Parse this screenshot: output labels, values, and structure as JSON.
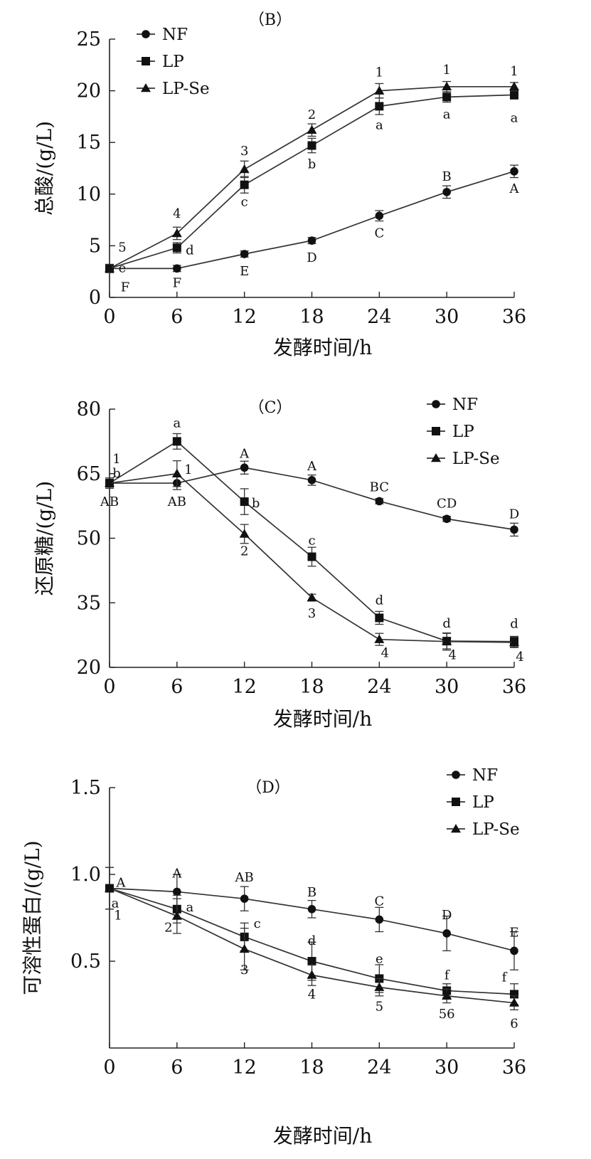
{
  "chart_data": [
    {
      "type": "line",
      "panel_label": "（B）",
      "xlabel": "发酵时间/h",
      "ylabel": "总酸/(g/L)",
      "x": [
        0,
        6,
        12,
        18,
        24,
        30,
        36
      ],
      "x_ticks": [
        "0",
        "6",
        "12",
        "18",
        "24",
        "30",
        "36"
      ],
      "y_ticks": [
        "0",
        "5",
        "10",
        "15",
        "20",
        "25"
      ],
      "xlim": [
        0,
        36
      ],
      "ylim": [
        0,
        25
      ],
      "grid": false,
      "legend_position": "top-left",
      "series": [
        {
          "name": "NF",
          "marker": "circle",
          "values": [
            2.8,
            2.8,
            4.2,
            5.5,
            7.9,
            10.2,
            12.2
          ],
          "error": [
            0.3,
            0.3,
            0.3,
            0.3,
            0.5,
            0.6,
            0.6
          ]
        },
        {
          "name": "LP",
          "marker": "square",
          "values": [
            2.8,
            4.8,
            10.9,
            14.7,
            18.5,
            19.4,
            19.6
          ],
          "error": [
            0.4,
            0.5,
            0.8,
            0.7,
            0.8,
            0.5,
            0.4
          ]
        },
        {
          "name": "LP-Se",
          "marker": "triangle",
          "values": [
            2.8,
            6.2,
            12.4,
            16.2,
            20.0,
            20.4,
            20.4
          ],
          "error": [
            0.4,
            0.6,
            0.8,
            0.6,
            0.7,
            0.5,
            0.4
          ]
        }
      ],
      "annotations": {
        "NF": [
          "F",
          "F",
          "E",
          "D",
          "C",
          "B",
          "A"
        ],
        "LP": [
          "e",
          "d",
          "c",
          "b",
          "a",
          "a",
          "a"
        ],
        "LP-Se": [
          "5",
          "4",
          "3",
          "2",
          "1",
          "1",
          "1"
        ]
      }
    },
    {
      "type": "line",
      "panel_label": "（C）",
      "xlabel": "发酵时间/h",
      "ylabel": "还原糖/(g/L)",
      "x": [
        0,
        6,
        12,
        18,
        24,
        30,
        36
      ],
      "x_ticks": [
        "0",
        "6",
        "12",
        "18",
        "24",
        "30",
        "36"
      ],
      "y_ticks": [
        "20",
        "35",
        "50",
        "65",
        "80"
      ],
      "xlim": [
        0,
        36
      ],
      "ylim": [
        20,
        80
      ],
      "grid": false,
      "legend_position": "top-right",
      "series": [
        {
          "name": "NF",
          "marker": "circle",
          "values": [
            62.8,
            62.8,
            66.4,
            63.5,
            58.6,
            54.5,
            52.0
          ],
          "error": [
            1.2,
            1.5,
            1.5,
            1.2,
            0.6,
            0.6,
            1.5
          ]
        },
        {
          "name": "LP",
          "marker": "square",
          "values": [
            62.8,
            72.5,
            58.5,
            45.7,
            31.5,
            26.1,
            26.0
          ],
          "error": [
            1.2,
            1.8,
            3.0,
            2.2,
            1.5,
            1.8,
            1.2
          ]
        },
        {
          "name": "LP-Se",
          "marker": "triangle",
          "values": [
            62.8,
            65.0,
            51.0,
            36.2,
            26.5,
            26.0,
            25.8
          ],
          "error": [
            1.2,
            3.0,
            2.2,
            0.8,
            1.4,
            2.0,
            1.2
          ]
        }
      ],
      "annotations": {
        "NF": [
          "AB",
          "AB",
          "A",
          "A",
          "BC",
          "CD",
          "D"
        ],
        "LP": [
          "b",
          "a",
          "b",
          "c",
          "d",
          "d",
          "d"
        ],
        "LP-Se": [
          "1",
          "1",
          "2",
          "3",
          "4",
          "4",
          "4"
        ]
      }
    },
    {
      "type": "line",
      "panel_label": "（D）",
      "xlabel": "发酵时间/h",
      "ylabel": "可溶性蛋白/(g/L)",
      "x": [
        0,
        6,
        12,
        18,
        24,
        30,
        36
      ],
      "x_ticks": [
        "0",
        "6",
        "12",
        "18",
        "24",
        "30",
        "36"
      ],
      "y_ticks": [
        "0.5",
        "1.0",
        "1.5"
      ],
      "xlim": [
        0,
        36
      ],
      "ylim": [
        0,
        1.5
      ],
      "grid": false,
      "legend_position": "top-right",
      "series": [
        {
          "name": "NF",
          "marker": "circle",
          "values": [
            0.92,
            0.9,
            0.86,
            0.8,
            0.74,
            0.66,
            0.56
          ],
          "error": [
            0.12,
            0.1,
            0.07,
            0.05,
            0.07,
            0.1,
            0.11
          ]
        },
        {
          "name": "LP",
          "marker": "square",
          "values": [
            0.92,
            0.8,
            0.64,
            0.5,
            0.4,
            0.33,
            0.31
          ],
          "error": [
            0.12,
            0.08,
            0.08,
            0.11,
            0.08,
            0.04,
            0.06
          ]
        },
        {
          "name": "LP-Se",
          "marker": "triangle",
          "values": [
            0.92,
            0.76,
            0.57,
            0.42,
            0.35,
            0.3,
            0.26
          ],
          "error": [
            0.12,
            0.1,
            0.12,
            0.06,
            0.05,
            0.04,
            0.04
          ]
        }
      ],
      "annotations": {
        "NF": [
          "A",
          "A",
          "AB",
          "B",
          "C",
          "D",
          "E"
        ],
        "LP": [
          "a",
          "a",
          "c",
          "d",
          "e",
          "f",
          "f"
        ],
        "LP-Se": [
          "1",
          "2",
          "3",
          "4",
          "5",
          "56",
          "6"
        ]
      }
    }
  ]
}
